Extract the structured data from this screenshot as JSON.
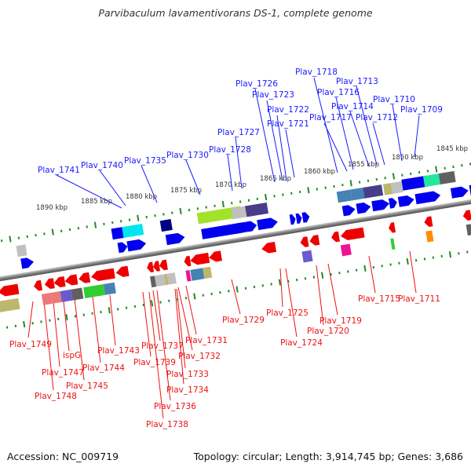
{
  "title": "Parvibaculum lavamentivorans DS-1, complete genome",
  "footer": {
    "accession": "Accession: NC_009719",
    "summary": "Topology: circular; Length: 3,914,745 bp; Genes: 3,686"
  },
  "colors": {
    "forward_gene": "#0000ee",
    "reverse_gene": "#ee0000",
    "forward_label": "#1a1aff",
    "reverse_label": "#ee1111",
    "ruler_ticks": "#228b22",
    "backbone": "#808080"
  },
  "ruler_labels": [
    "1890 kbp",
    "1885 kbp",
    "1880 kbp",
    "1875 kbp",
    "1870 kbp",
    "1865 kbp",
    "1860 kbp",
    "1855 kbp",
    "1850 kbp",
    "1845 kbp"
  ],
  "forward_labels": [
    "Plav_1741",
    "Plav_1740",
    "Plav_1735",
    "Plav_1730",
    "Plav_1728",
    "Plav_1727",
    "Plav_1726",
    "Plav_1723",
    "Plav_1722",
    "Plav_1721",
    "Plav_1718",
    "Plav_1717",
    "Plav_1716",
    "Plav_1714",
    "Plav_1713",
    "Plav_1712",
    "Plav_1710",
    "Plav_1709"
  ],
  "reverse_labels": [
    "Plav_1749",
    "Plav_1748",
    "Plav_1747",
    "ispG",
    "Plav_1745",
    "Plav_1744",
    "Plav_1743",
    "Plav_1739",
    "Plav_1738",
    "Plav_1737",
    "Plav_1736",
    "Plav_1734",
    "Plav_1733",
    "Plav_1732",
    "Plav_1731",
    "Plav_1729",
    "Plav_1725",
    "Plav_1724",
    "Plav_1720",
    "Plav_1719",
    "Plav_1715",
    "Plav_1711"
  ],
  "cog_colors": {
    "gray_light": "#c0c0c0",
    "gray_dark": "#606060",
    "navy": "#483d8b",
    "steel": "#4682b4",
    "cyan": "#00e5ee",
    "lime": "#a2e22a",
    "olive": "#bdb76b",
    "spring": "#20e8a0",
    "pink": "#ee7777",
    "slate": "#6a5acd",
    "green": "#32cd32",
    "magenta": "#ee1493",
    "orange": "#ff8c00",
    "brightgreen": "#33cc33"
  }
}
